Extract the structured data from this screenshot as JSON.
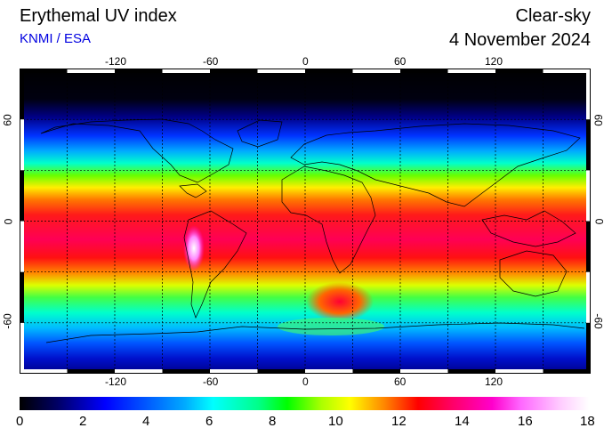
{
  "header": {
    "title": "Erythemal UV index",
    "provider": "KNMI / ESA",
    "sky": "Clear-sky",
    "date": "4 November 2024"
  },
  "map": {
    "lon_ticks": [
      "-120",
      "-60",
      "0",
      "60",
      "120"
    ],
    "lon_values": [
      -120,
      -60,
      0,
      60,
      120
    ],
    "lat_ticks": [
      "60",
      "0",
      "-60"
    ],
    "lat_values": [
      60,
      0,
      -60
    ],
    "lon_range": [
      -180,
      180
    ],
    "lat_range": [
      -90,
      90
    ],
    "grid": true
  },
  "colorbar": {
    "ticks": [
      "0",
      "2",
      "4",
      "6",
      "8",
      "10",
      "12",
      "14",
      "16",
      "18"
    ],
    "range": [
      0,
      18
    ],
    "colors": [
      "#000000",
      "#000066",
      "#0000ff",
      "#00aaff",
      "#00ffff",
      "#00ff88",
      "#00ff00",
      "#aaff00",
      "#ffff00",
      "#ff8800",
      "#ff0000",
      "#ff0066",
      "#ff00cc",
      "#ff66ff",
      "#ffccff",
      "#ffffff"
    ]
  }
}
